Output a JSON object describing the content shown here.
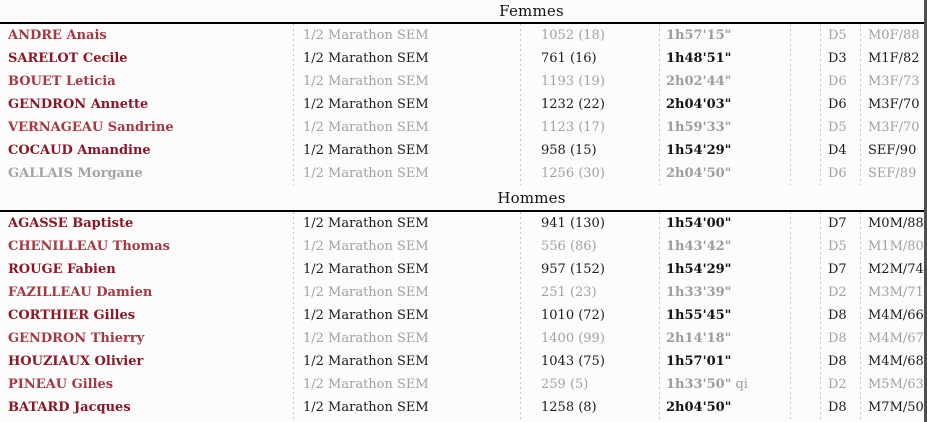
{
  "table": {
    "sections": [
      {
        "title": "Femmes",
        "rows": [
          {
            "name": "ANDRE Anais",
            "race": "1/2 Marathon SEM",
            "bib": "1052 (18)",
            "time": "1h57'15\"",
            "time_suffix": "",
            "dcode": "D5",
            "category": "M0F/88",
            "style": "gray",
            "name_muted": false
          },
          {
            "name": "SARELOT Cecile",
            "race": "1/2 Marathon SEM",
            "bib": "761 (16)",
            "time": "1h48'51\"",
            "time_suffix": "",
            "dcode": "D3",
            "category": "M1F/82",
            "style": "dark",
            "name_muted": false
          },
          {
            "name": "BOUET Leticia",
            "race": "1/2 Marathon SEM",
            "bib": "1193 (19)",
            "time": "2h02'44\"",
            "time_suffix": "",
            "dcode": "D6",
            "category": "M3F/73",
            "style": "gray",
            "name_muted": false
          },
          {
            "name": "GENDRON Annette",
            "race": "1/2 Marathon SEM",
            "bib": "1232 (22)",
            "time": "2h04'03\"",
            "time_suffix": "",
            "dcode": "D6",
            "category": "M3F/70",
            "style": "dark",
            "name_muted": false
          },
          {
            "name": "VERNAGEAU Sandrine",
            "race": "1/2 Marathon SEM",
            "bib": "1123 (17)",
            "time": "1h59'33\"",
            "time_suffix": "",
            "dcode": "D5",
            "category": "M3F/70",
            "style": "gray",
            "name_muted": false
          },
          {
            "name": "COCAUD Amandine",
            "race": "1/2 Marathon SEM",
            "bib": "958 (15)",
            "time": "1h54'29\"",
            "time_suffix": "",
            "dcode": "D4",
            "category": "SEF/90",
            "style": "dark",
            "name_muted": false
          },
          {
            "name": "GALLAIS Morgane",
            "race": "1/2 Marathon SEM",
            "bib": "1256 (30)",
            "time": "2h04'50\"",
            "time_suffix": "",
            "dcode": "D6",
            "category": "SEF/89",
            "style": "gray",
            "name_muted": true
          }
        ]
      },
      {
        "title": "Hommes",
        "rows": [
          {
            "name": "AGASSE Baptiste",
            "race": "1/2 Marathon SEM",
            "bib": "941 (130)",
            "time": "1h54'00\"",
            "time_suffix": "",
            "dcode": "D7",
            "category": "M0M/88",
            "style": "dark",
            "name_muted": false
          },
          {
            "name": "CHENILLEAU Thomas",
            "race": "1/2 Marathon SEM",
            "bib": "556 (86)",
            "time": "1h43'42\"",
            "time_suffix": "",
            "dcode": "D5",
            "category": "M1M/80",
            "style": "gray",
            "name_muted": false
          },
          {
            "name": "ROUGE Fabien",
            "race": "1/2 Marathon SEM",
            "bib": "957 (152)",
            "time": "1h54'29\"",
            "time_suffix": "",
            "dcode": "D7",
            "category": "M2M/74",
            "style": "dark",
            "name_muted": false
          },
          {
            "name": "FAZILLEAU Damien",
            "race": "1/2 Marathon SEM",
            "bib": "251 (23)",
            "time": "1h33'39\"",
            "time_suffix": "",
            "dcode": "D2",
            "category": "M3M/71",
            "style": "gray",
            "name_muted": false
          },
          {
            "name": "CORTHIER Gilles",
            "race": "1/2 Marathon SEM",
            "bib": "1010 (72)",
            "time": "1h55'45\"",
            "time_suffix": "",
            "dcode": "D8",
            "category": "M4M/66",
            "style": "dark",
            "name_muted": false
          },
          {
            "name": "GENDRON Thierry",
            "race": "1/2 Marathon SEM",
            "bib": "1400 (99)",
            "time": "2h14'18\"",
            "time_suffix": "",
            "dcode": "D8",
            "category": "M4M/67",
            "style": "gray",
            "name_muted": false
          },
          {
            "name": "HOUZIAUX Olivier",
            "race": "1/2 Marathon SEM",
            "bib": "1043 (75)",
            "time": "1h57'01\"",
            "time_suffix": "",
            "dcode": "D8",
            "category": "M4M/68",
            "style": "dark",
            "name_muted": false
          },
          {
            "name": "PINEAU Gilles",
            "race": "1/2 Marathon SEM",
            "bib": "259 (5)",
            "time": "1h33'50\"",
            "time_suffix": "qi",
            "dcode": "D2",
            "category": "M5M/63",
            "style": "gray",
            "name_muted": false
          },
          {
            "name": "BATARD Jacques",
            "race": "1/2 Marathon SEM",
            "bib": "1258 (8)",
            "time": "2h04'50\"",
            "time_suffix": "",
            "dcode": "D8",
            "category": "M7M/50",
            "style": "dark",
            "name_muted": false
          }
        ]
      }
    ]
  },
  "colors": {
    "name_red_dark": "#8a1726",
    "name_red_light": "#a43845",
    "muted_gray": "#a2a2a2",
    "text_dark": "#1c1c1c",
    "rule_black": "#000000"
  }
}
